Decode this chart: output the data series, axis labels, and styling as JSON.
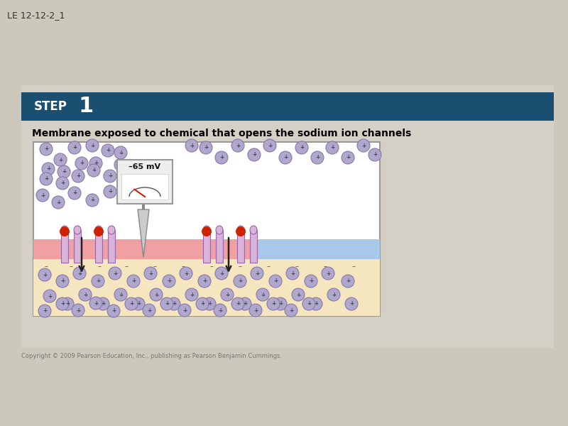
{
  "title_label": "LE 12-12-2_1",
  "step_label": "STEP",
  "step_number": "1",
  "step_bg_color": "#1b4f72",
  "step_text_color": "#ffffff",
  "subtitle": "Membrane exposed to chemical that opens the sodium ion channels",
  "subtitle_color": "#000000",
  "page_bg": "#d5d0c5",
  "diagram_bg": "#ffffff",
  "outer_bg": "#ccc8bb",
  "copyright": "Copyright © 2009 Pearson Education, Inc., publishing as Pearson Benjamin Cummings.",
  "membrane_color": "#f0a0a0",
  "blue_patch_color": "#a8c8e8",
  "bottom_area_color": "#f5e6c0",
  "channel_color": "#d8b4d8",
  "channel_outline": "#9966aa",
  "red_dot_color": "#cc2200",
  "ion_circle_color": "#b0a8cc",
  "ion_plus_color": "#444455",
  "ion_border_color": "#8877aa",
  "neg_dash_color": "#555555",
  "arrow_color": "#222222",
  "voltmeter_bg": "#eeeeee",
  "voltmeter_border": "#999999",
  "voltmeter_text": "–65 mV",
  "voltmeter_needle_color": "#cc2200",
  "electrode_color": "#aaaaaa"
}
